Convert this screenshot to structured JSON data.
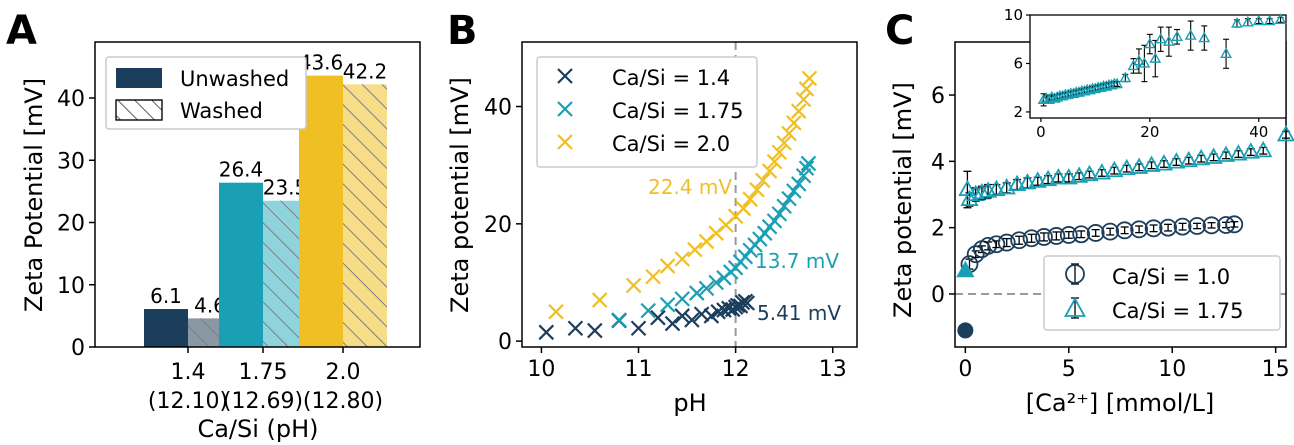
{
  "colors": {
    "navy": "#1b3e5c",
    "teal": "#1aa0b4",
    "gold": "#f0bf24",
    "grid_dash": "#999999"
  },
  "panels": {
    "a": {
      "letter": "A"
    },
    "b": {
      "letter": "B"
    },
    "c": {
      "letter": "C"
    }
  },
  "chart_data": [
    {
      "type": "bar",
      "panel": "A",
      "categories": [
        "1.4\n(12.10)",
        "1.75\n(12.69)",
        "2.0\n(12.80)"
      ],
      "series": [
        {
          "name": "Unwashed",
          "values": [
            6.1,
            26.4,
            43.6
          ]
        },
        {
          "name": "Washed",
          "values": [
            4.6,
            23.5,
            42.2
          ]
        }
      ],
      "value_labels": [
        [
          "6.1",
          "4.6"
        ],
        [
          "26.4",
          "23.5"
        ],
        [
          "43.6",
          "42.2"
        ]
      ],
      "xlabel": "Ca/Si (pH)",
      "ylabel": "Zeta Potential [mV]",
      "ylim": [
        0,
        49
      ],
      "yticks": [
        0,
        10,
        20,
        30,
        40
      ],
      "legend": "top-left"
    },
    {
      "type": "scatter",
      "panel": "B",
      "marker": "x",
      "xlabel": "pH",
      "ylabel": "Zeta potential [mV]",
      "xlim": [
        9.8,
        13.25
      ],
      "ylim": [
        -1,
        51
      ],
      "xticks": [
        10,
        11,
        12,
        13
      ],
      "yticks": [
        0,
        20,
        40
      ],
      "vline_x": 12.0,
      "legend": "top-left",
      "series": [
        {
          "name": "Ca/Si = 1.4",
          "points": [
            [
              10.05,
              1.5
            ],
            [
              10.35,
              2.2
            ],
            [
              10.55,
              1.8
            ],
            [
              10.8,
              3.5
            ],
            [
              11.0,
              2.2
            ],
            [
              11.2,
              4.0
            ],
            [
              11.35,
              3.0
            ],
            [
              11.45,
              4.3
            ],
            [
              11.55,
              3.6
            ],
            [
              11.65,
              4.6
            ],
            [
              11.75,
              4.3
            ],
            [
              11.82,
              5.0
            ],
            [
              11.88,
              5.3
            ],
            [
              11.93,
              5.6
            ],
            [
              11.97,
              5.4
            ],
            [
              12.0,
              5.8
            ],
            [
              12.02,
              6.1
            ],
            [
              12.05,
              6.0
            ],
            [
              12.07,
              6.6
            ],
            [
              12.1,
              6.8
            ],
            [
              12.12,
              6.5
            ]
          ]
        },
        {
          "name": "Ca/Si = 1.75",
          "points": [
            [
              10.8,
              3.6
            ],
            [
              11.1,
              5.2
            ],
            [
              11.3,
              6.2
            ],
            [
              11.45,
              7.2
            ],
            [
              11.6,
              8.2
            ],
            [
              11.7,
              9.0
            ],
            [
              11.8,
              10.0
            ],
            [
              11.88,
              10.8
            ],
            [
              11.95,
              11.8
            ],
            [
              12.0,
              12.5
            ],
            [
              12.05,
              13.5
            ],
            [
              12.1,
              14.4
            ],
            [
              12.15,
              15.5
            ],
            [
              12.2,
              16.4
            ],
            [
              12.25,
              17.4
            ],
            [
              12.3,
              18.4
            ],
            [
              12.35,
              19.5
            ],
            [
              12.4,
              20.5
            ],
            [
              12.45,
              21.7
            ],
            [
              12.5,
              23.0
            ],
            [
              12.55,
              24.3
            ],
            [
              12.6,
              25.6
            ],
            [
              12.65,
              26.8
            ],
            [
              12.7,
              28.2
            ],
            [
              12.73,
              29.5
            ],
            [
              12.75,
              30.3
            ]
          ]
        },
        {
          "name": "Ca/Si = 2.0",
          "points": [
            [
              10.15,
              5.0
            ],
            [
              10.6,
              7.0
            ],
            [
              10.95,
              9.5
            ],
            [
              11.15,
              11.0
            ],
            [
              11.3,
              12.8
            ],
            [
              11.45,
              14.0
            ],
            [
              11.58,
              15.6
            ],
            [
              11.7,
              17.0
            ],
            [
              11.8,
              18.4
            ],
            [
              11.9,
              19.8
            ],
            [
              12.0,
              21.3
            ],
            [
              12.08,
              22.6
            ],
            [
              12.15,
              24.2
            ],
            [
              12.22,
              25.8
            ],
            [
              12.28,
              27.4
            ],
            [
              12.35,
              29.0
            ],
            [
              12.4,
              30.6
            ],
            [
              12.45,
              32.2
            ],
            [
              12.5,
              33.8
            ],
            [
              12.55,
              35.4
            ],
            [
              12.6,
              37.2
            ],
            [
              12.65,
              39.2
            ],
            [
              12.7,
              41.2
            ],
            [
              12.73,
              43.0
            ],
            [
              12.76,
              44.8
            ]
          ]
        }
      ],
      "annotations": [
        {
          "text": "22.4 mV",
          "color": "gold"
        },
        {
          "text": "13.7 mV",
          "color": "teal"
        },
        {
          "text": "5.41 mV",
          "color": "navy"
        }
      ]
    },
    {
      "type": "scatter",
      "panel": "C",
      "marker": "errorbar",
      "xlabel": "[Ca²⁺] [mmol/L]",
      "ylabel": "Zeta potential [mV]",
      "xlim": [
        -0.5,
        15.5
      ],
      "ylim": [
        -1.6,
        7.6
      ],
      "xticks": [
        0,
        5,
        10,
        15
      ],
      "yticks": [
        0,
        2,
        4,
        6
      ],
      "hline_y": 0,
      "legend": "bottom-right",
      "filled_points": [
        {
          "series": "Ca/Si = 1.0",
          "x": 0,
          "y": -1.1
        },
        {
          "series": "Ca/Si = 1.75",
          "x": 0,
          "y": 0.7
        }
      ],
      "series": [
        {
          "name": "Ca/Si = 1.0",
          "points": [
            [
              0.2,
              0.9,
              0.15
            ],
            [
              0.5,
              1.2,
              0.1
            ],
            [
              0.8,
              1.35,
              0.1
            ],
            [
              1.1,
              1.45,
              0.12
            ],
            [
              1.5,
              1.5,
              0.1
            ],
            [
              2.0,
              1.55,
              0.12
            ],
            [
              2.6,
              1.62,
              0.12
            ],
            [
              3.2,
              1.68,
              0.12
            ],
            [
              3.8,
              1.72,
              0.12
            ],
            [
              4.4,
              1.75,
              0.12
            ],
            [
              5.0,
              1.78,
              0.1
            ],
            [
              5.6,
              1.8,
              0.1
            ],
            [
              6.3,
              1.84,
              0.1
            ],
            [
              7.0,
              1.88,
              0.1
            ],
            [
              7.7,
              1.92,
              0.1
            ],
            [
              8.4,
              1.95,
              0.1
            ],
            [
              9.1,
              1.98,
              0.1
            ],
            [
              9.8,
              2.0,
              0.1
            ],
            [
              10.5,
              2.03,
              0.1
            ],
            [
              11.2,
              2.05,
              0.08
            ],
            [
              11.9,
              2.07,
              0.08
            ],
            [
              12.6,
              2.08,
              0.08
            ],
            [
              13.0,
              2.1,
              0.08
            ]
          ]
        },
        {
          "name": "Ca/Si = 1.75",
          "points": [
            [
              0.1,
              3.15,
              0.55
            ],
            [
              0.2,
              2.85,
              0.2
            ],
            [
              0.5,
              3.0,
              0.2
            ],
            [
              0.8,
              3.05,
              0.2
            ],
            [
              1.1,
              3.1,
              0.2
            ],
            [
              1.5,
              3.15,
              0.15
            ],
            [
              2.0,
              3.2,
              0.15
            ],
            [
              2.5,
              3.3,
              0.15
            ],
            [
              3.0,
              3.35,
              0.15
            ],
            [
              3.5,
              3.4,
              0.12
            ],
            [
              4.0,
              3.45,
              0.12
            ],
            [
              4.5,
              3.5,
              0.12
            ],
            [
              5.0,
              3.5,
              0.12
            ],
            [
              5.5,
              3.55,
              0.1
            ],
            [
              6.0,
              3.6,
              0.1
            ],
            [
              6.6,
              3.65,
              0.1
            ],
            [
              7.2,
              3.72,
              0.1
            ],
            [
              7.8,
              3.78,
              0.1
            ],
            [
              8.4,
              3.82,
              0.1
            ],
            [
              9.0,
              3.88,
              0.1
            ],
            [
              9.6,
              3.92,
              0.1
            ],
            [
              10.2,
              3.98,
              0.1
            ],
            [
              10.8,
              4.02,
              0.1
            ],
            [
              11.4,
              4.08,
              0.1
            ],
            [
              12.0,
              4.12,
              0.1
            ],
            [
              12.6,
              4.18,
              0.1
            ],
            [
              13.2,
              4.22,
              0.1
            ],
            [
              13.8,
              4.28,
              0.1
            ],
            [
              14.4,
              4.32,
              0.1
            ],
            [
              15.5,
              4.8,
              0.1
            ]
          ]
        }
      ],
      "inset": {
        "xlim": [
          -2,
          45
        ],
        "ylim": [
          1.5,
          10
        ],
        "xticks": [
          0,
          20,
          40
        ],
        "yticks": [
          2,
          6,
          10
        ],
        "points": [
          [
            0.5,
            3.0,
            0.5
          ],
          [
            1,
            3.1,
            0.3
          ],
          [
            1.5,
            3.0,
            0.3
          ],
          [
            2,
            3.2,
            0.2
          ],
          [
            2.5,
            3.1,
            0.2
          ],
          [
            3,
            3.2,
            0.2
          ],
          [
            3.5,
            3.3,
            0.2
          ],
          [
            4,
            3.3,
            0.2
          ],
          [
            4.5,
            3.4,
            0.2
          ],
          [
            5,
            3.4,
            0.2
          ],
          [
            5.5,
            3.5,
            0.2
          ],
          [
            6,
            3.5,
            0.2
          ],
          [
            6.5,
            3.6,
            0.2
          ],
          [
            7,
            3.6,
            0.2
          ],
          [
            7.5,
            3.7,
            0.2
          ],
          [
            8,
            3.7,
            0.2
          ],
          [
            8.5,
            3.8,
            0.2
          ],
          [
            9,
            3.8,
            0.2
          ],
          [
            9.5,
            3.9,
            0.2
          ],
          [
            10,
            3.9,
            0.2
          ],
          [
            10.5,
            4.0,
            0.2
          ],
          [
            11,
            4.0,
            0.2
          ],
          [
            11.5,
            4.1,
            0.2
          ],
          [
            12,
            4.1,
            0.2
          ],
          [
            12.5,
            4.2,
            0.2
          ],
          [
            13,
            4.2,
            0.2
          ],
          [
            13.5,
            4.3,
            0.2
          ],
          [
            14,
            4.3,
            0.2
          ],
          [
            15.5,
            4.8,
            0.3
          ],
          [
            17,
            5.8,
            0.6
          ],
          [
            18,
            6.2,
            1.0
          ],
          [
            19,
            6.0,
            1.5
          ],
          [
            20,
            7.6,
            0.8
          ],
          [
            21,
            6.4,
            1.5
          ],
          [
            22,
            8.0,
            1.0
          ],
          [
            23.5,
            7.8,
            1.2
          ],
          [
            25,
            8.2,
            0.6
          ],
          [
            27.5,
            8.3,
            1.2
          ],
          [
            30,
            8.1,
            1.0
          ],
          [
            34,
            6.8,
            1.2
          ],
          [
            36,
            9.3,
            0.3
          ],
          [
            38,
            9.4,
            0.3
          ],
          [
            40,
            9.5,
            0.2
          ],
          [
            42,
            9.5,
            0.2
          ],
          [
            44,
            9.6,
            0.2
          ]
        ]
      }
    }
  ]
}
